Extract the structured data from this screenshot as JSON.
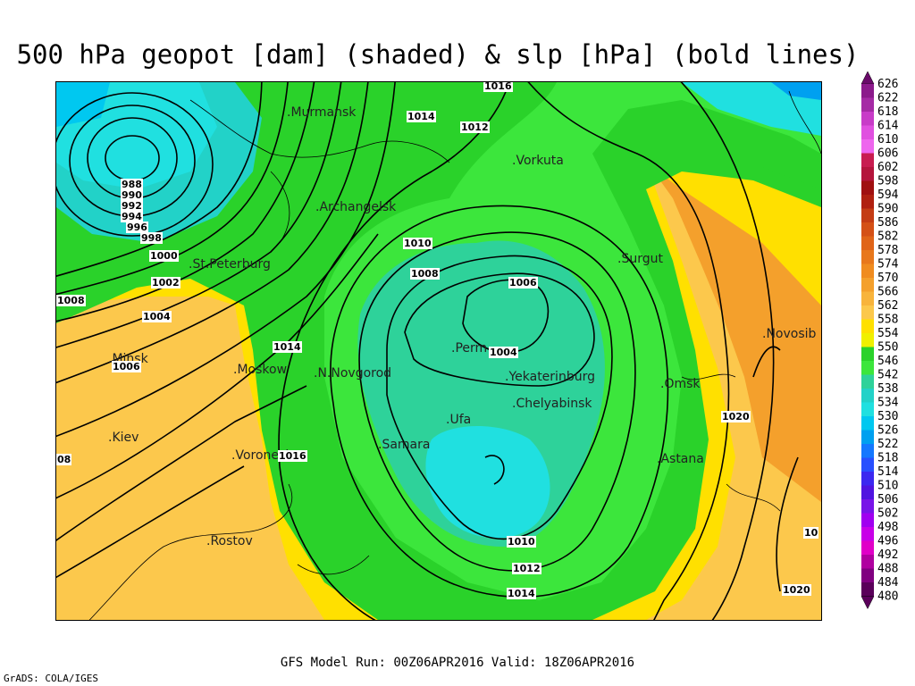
{
  "title": "500 hPa geopot [dam] (shaded) & slp [hPa] (bold lines)",
  "footer": "GFS Model Run: 00Z06APR2016 Valid: 18Z06APR2016",
  "credit": "GrADS: COLA/IGES",
  "colorbar": {
    "levels": [
      "626",
      "622",
      "618",
      "614",
      "610",
      "606",
      "602",
      "598",
      "594",
      "590",
      "586",
      "582",
      "578",
      "574",
      "570",
      "566",
      "562",
      "558",
      "554",
      "550",
      "546",
      "542",
      "538",
      "534",
      "530",
      "526",
      "522",
      "518",
      "514",
      "510",
      "506",
      "502",
      "498",
      "496",
      "492",
      "488",
      "484",
      "480"
    ],
    "colors": [
      "#6a0a6a",
      "#8b1a8b",
      "#a52aa5",
      "#c83cc8",
      "#e050e0",
      "#ee66ee",
      "#c81c50",
      "#b4143c",
      "#a01010",
      "#b02010",
      "#c43c14",
      "#d45016",
      "#e06418",
      "#e8781c",
      "#f08c20",
      "#f4a02c",
      "#f8b43c",
      "#fcc84c",
      "#ffe000",
      "#f0f000",
      "#2ad22a",
      "#3ce63c",
      "#2ed29a",
      "#22d2c8",
      "#20e0e0",
      "#00c8f0",
      "#00a0f0",
      "#1478ff",
      "#2850ff",
      "#3c28f0",
      "#5014e0",
      "#7814e8",
      "#a000f0",
      "#c800e8",
      "#e000c8",
      "#b000a0",
      "#800080",
      "#5a005a"
    ]
  },
  "cities": [
    {
      "name": ".Murmansk"
    },
    {
      "name": ".Vorkuta"
    },
    {
      "name": ".Archangelsk"
    },
    {
      "name": ".Surgut"
    },
    {
      "name": ".St.Peterburg"
    },
    {
      "name": ".Novosib"
    },
    {
      "name": ".Minsk"
    },
    {
      "name": ".Moskow"
    },
    {
      "name": ".N.Novgorod"
    },
    {
      "name": ".Perm"
    },
    {
      "name": ".Yekaterinburg"
    },
    {
      "name": ".Omsk"
    },
    {
      "name": ".Chelyabinsk"
    },
    {
      "name": ".Ufa"
    },
    {
      "name": ".Kiev"
    },
    {
      "name": ".Samara"
    },
    {
      "name": ".Voronezh"
    },
    {
      "name": ".Astana"
    },
    {
      "name": ".Rostov"
    }
  ],
  "isobar_labels": [
    "1016",
    "1014",
    "1012",
    "988",
    "990",
    "992",
    "994",
    "996",
    "998",
    "1000",
    "1002",
    "1004",
    "1008",
    "1006",
    "1010",
    "1008",
    "1006",
    "1004",
    "1014",
    "1016",
    "1020",
    "08",
    "1010",
    "1012",
    "1014",
    "1020",
    "10"
  ]
}
